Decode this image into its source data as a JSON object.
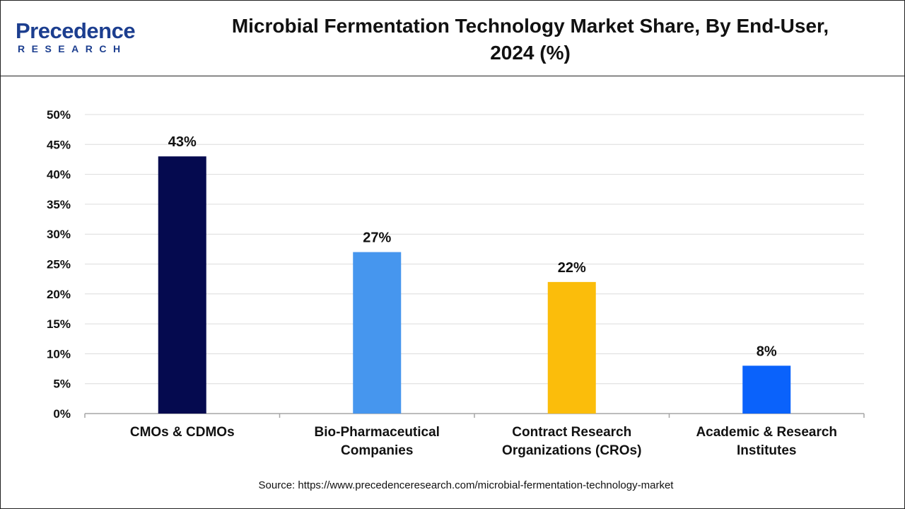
{
  "header": {
    "logo_main": "Precedence",
    "logo_sub": "RESEARCH",
    "title_line1": "Microbial Fermentation Technology Market Share, By End-User,",
    "title_line2": "2024 (%)"
  },
  "footer": {
    "source": "Source: https://www.precedenceresearch.com/microbial-fermentation-technology-market"
  },
  "chart_data": {
    "type": "bar",
    "title": "Microbial Fermentation Technology Market Share, By End-User, 2024 (%)",
    "xlabel": "",
    "ylabel": "",
    "categories": [
      [
        "CMOs & CDMOs"
      ],
      [
        "Bio-Pharmaceutical",
        "Companies"
      ],
      [
        "Contract Research",
        "Organizations (CROs)"
      ],
      [
        "Academic & Research",
        "Institutes"
      ]
    ],
    "values": [
      43,
      27,
      22,
      8
    ],
    "data_labels": [
      "43%",
      "27%",
      "22%",
      "8%"
    ],
    "bar_colors": [
      "#050a4f",
      "#4696ee",
      "#fbbd0b",
      "#0a62fb"
    ],
    "ylim": [
      0,
      50
    ],
    "yticks": [
      0,
      5,
      10,
      15,
      20,
      25,
      30,
      35,
      40,
      45,
      50
    ],
    "ytick_labels": [
      "0%",
      "5%",
      "10%",
      "15%",
      "20%",
      "25%",
      "30%",
      "35%",
      "40%",
      "45%",
      "50%"
    ],
    "grid": true,
    "legend": "none"
  }
}
